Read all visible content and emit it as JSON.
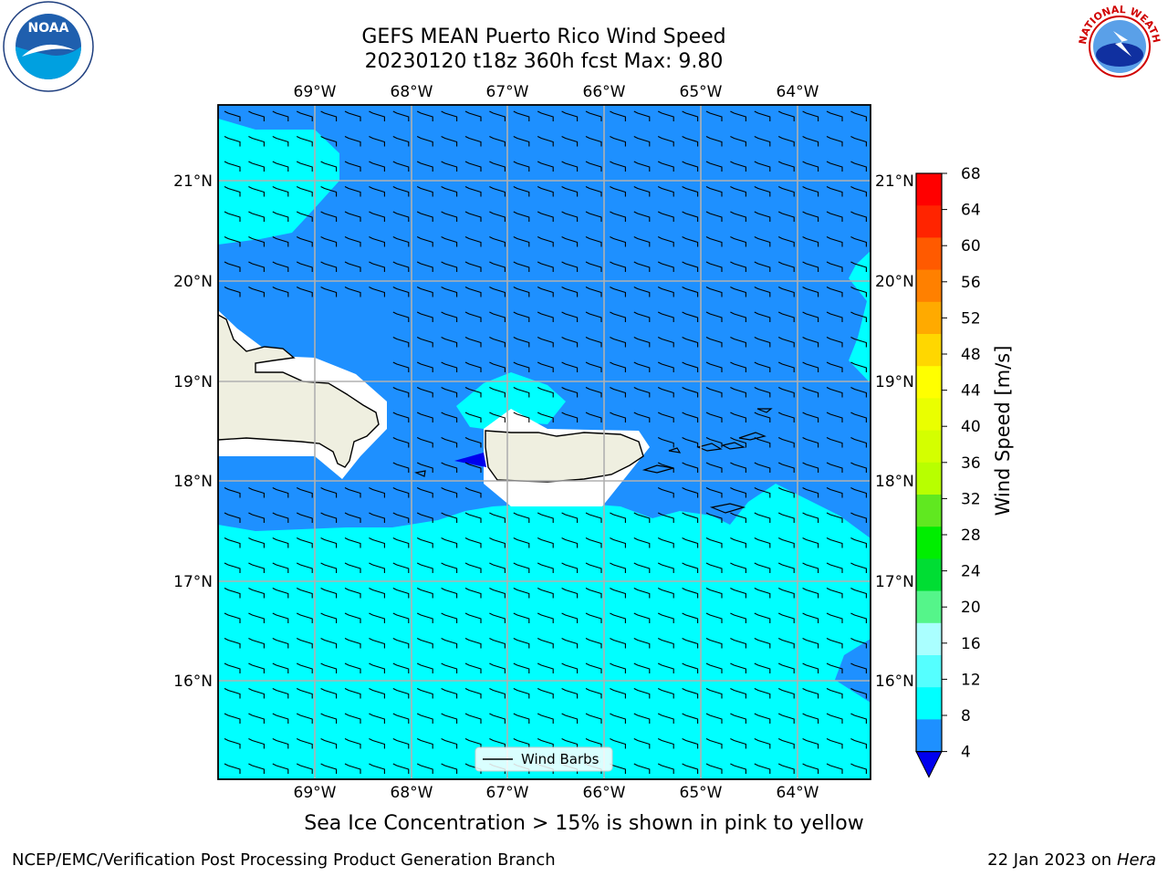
{
  "title": {
    "line1": "GEFS MEAN Puerto Rico Wind Speed",
    "line2": "20230120 t18z 360h fcst   Max: 9.80"
  },
  "map": {
    "lon_ticks": [
      "69°W",
      "68°W",
      "67°W",
      "66°W",
      "65°W",
      "64°W"
    ],
    "lat_ticks": [
      "21°N",
      "20°N",
      "19°N",
      "18°N",
      "17°N",
      "16°N"
    ],
    "legend_label": "Wind Barbs",
    "fill_colors": {
      "band_4_8": "#1e90ff",
      "band_8_12": "#00ffff",
      "land": "#efefe0",
      "below_4": "#0000ee"
    }
  },
  "colorbar": {
    "title": "Wind Speed [m/s]",
    "ticks": [
      "68",
      "64",
      "60",
      "56",
      "52",
      "48",
      "44",
      "40",
      "36",
      "32",
      "28",
      "24",
      "20",
      "16",
      "12",
      "8",
      "4"
    ],
    "colors": [
      "#ff0000",
      "#ff2400",
      "#ff5a00",
      "#ff8000",
      "#ffaa00",
      "#ffd700",
      "#ffff00",
      "#eaff00",
      "#d4ff00",
      "#b8ff00",
      "#60e820",
      "#00ee00",
      "#00dd33",
      "#55f58a",
      "#aaffff",
      "#55ffff",
      "#00ffff",
      "#1e90ff"
    ]
  },
  "caption": "Sea Ice Concentration > 15% is shown in pink to yellow",
  "footer": {
    "left": "NCEP/EMC/Verification Post Processing Product Generation Branch",
    "right_prefix": "22 Jan 2023 on ",
    "right_machine": "Hera"
  },
  "logos": {
    "noaa_text": "NOAA",
    "nws_text": "NATIONAL WEATHER SERVICE"
  }
}
